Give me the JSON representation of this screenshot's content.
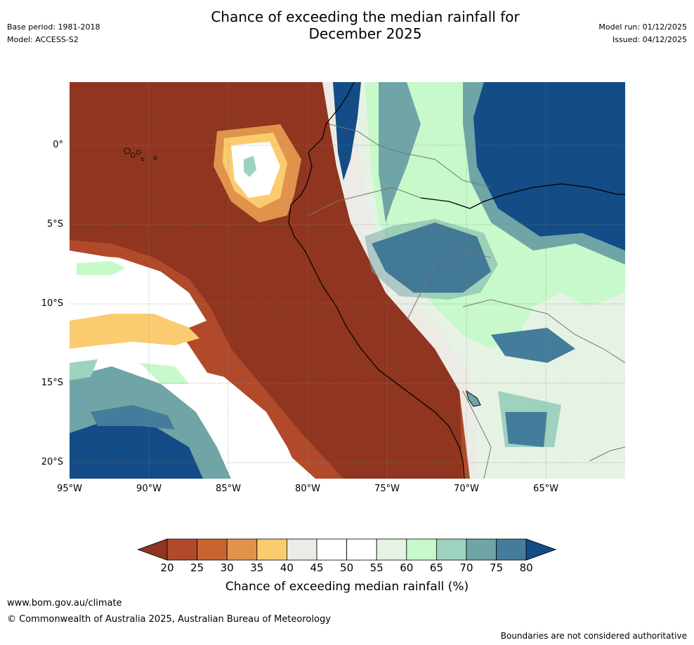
{
  "header": {
    "title_line1": "Chance of exceeding the median rainfall for",
    "title_line2": "December 2025",
    "base_period": "Base period: 1981-2018",
    "model": "Model: ACCESS-S2",
    "model_run": "Model run: 01/12/2025",
    "issued": "Issued: 04/12/2025"
  },
  "map": {
    "lat_labels": [
      "0°",
      "5°S",
      "10°S",
      "15°S",
      "20°S"
    ],
    "lon_labels": [
      "95°W",
      "90°W",
      "85°W",
      "80°W",
      "75°W",
      "70°W",
      "65°W"
    ],
    "lat_range": [
      -21.0,
      4.0
    ],
    "lon_range": [
      -95.0,
      -60.0
    ]
  },
  "legend": {
    "title": "Chance of exceeding median rainfall (%)",
    "ticks": [
      "20",
      "25",
      "30",
      "35",
      "40",
      "45",
      "50",
      "55",
      "60",
      "65",
      "70",
      "75",
      "80"
    ],
    "colors": [
      "#8f3520",
      "#b04a2b",
      "#c8642f",
      "#e0944b",
      "#fbcc6f",
      "#edebe6",
      "#ffffff",
      "#ffffff",
      "#e6f3e4",
      "#c7f9cb",
      "#9dd2be",
      "#6fa5a6",
      "#447c9b",
      "#134c86"
    ]
  },
  "footer": {
    "url": "www.bom.gov.au/climate",
    "copyright": "© Commonwealth of Australia 2025, Australian Bureau of Meteorology",
    "note": "Boundaries are not considered authoritative"
  }
}
